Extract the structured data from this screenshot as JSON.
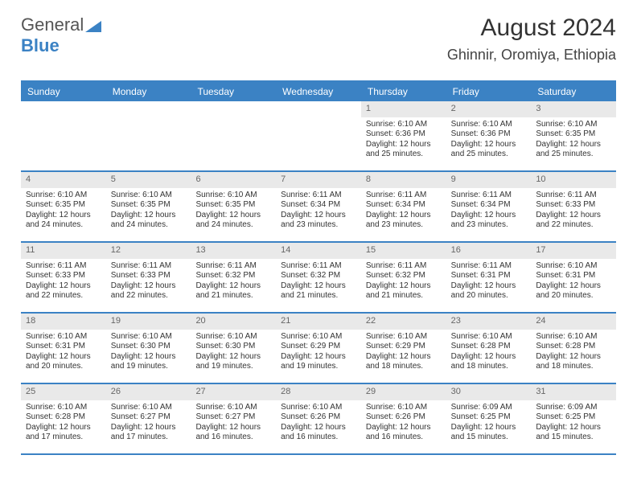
{
  "logo": {
    "text1": "General",
    "text2": "Blue"
  },
  "title": "August 2024",
  "location": "Ghinnir, Oromiya, Ethiopia",
  "colors": {
    "accent": "#3b82c4",
    "date_bg": "#e9e9e9",
    "text": "#333333",
    "muted": "#666666",
    "bg": "#ffffff",
    "header_text": "#ffffff"
  },
  "typography": {
    "title_fontsize": 30,
    "location_fontsize": 18,
    "dayhead_fontsize": 12,
    "cell_fontsize": 10,
    "date_fontsize": 11,
    "family": "Arial"
  },
  "day_headers": [
    "Sunday",
    "Monday",
    "Tuesday",
    "Wednesday",
    "Thursday",
    "Friday",
    "Saturday"
  ],
  "weeks": [
    [
      {
        "date": "",
        "sunrise": "",
        "sunset": "",
        "daylight": ""
      },
      {
        "date": "",
        "sunrise": "",
        "sunset": "",
        "daylight": ""
      },
      {
        "date": "",
        "sunrise": "",
        "sunset": "",
        "daylight": ""
      },
      {
        "date": "",
        "sunrise": "",
        "sunset": "",
        "daylight": ""
      },
      {
        "date": "1",
        "sunrise": "Sunrise: 6:10 AM",
        "sunset": "Sunset: 6:36 PM",
        "daylight": "Daylight: 12 hours and 25 minutes."
      },
      {
        "date": "2",
        "sunrise": "Sunrise: 6:10 AM",
        "sunset": "Sunset: 6:36 PM",
        "daylight": "Daylight: 12 hours and 25 minutes."
      },
      {
        "date": "3",
        "sunrise": "Sunrise: 6:10 AM",
        "sunset": "Sunset: 6:35 PM",
        "daylight": "Daylight: 12 hours and 25 minutes."
      }
    ],
    [
      {
        "date": "4",
        "sunrise": "Sunrise: 6:10 AM",
        "sunset": "Sunset: 6:35 PM",
        "daylight": "Daylight: 12 hours and 24 minutes."
      },
      {
        "date": "5",
        "sunrise": "Sunrise: 6:10 AM",
        "sunset": "Sunset: 6:35 PM",
        "daylight": "Daylight: 12 hours and 24 minutes."
      },
      {
        "date": "6",
        "sunrise": "Sunrise: 6:10 AM",
        "sunset": "Sunset: 6:35 PM",
        "daylight": "Daylight: 12 hours and 24 minutes."
      },
      {
        "date": "7",
        "sunrise": "Sunrise: 6:11 AM",
        "sunset": "Sunset: 6:34 PM",
        "daylight": "Daylight: 12 hours and 23 minutes."
      },
      {
        "date": "8",
        "sunrise": "Sunrise: 6:11 AM",
        "sunset": "Sunset: 6:34 PM",
        "daylight": "Daylight: 12 hours and 23 minutes."
      },
      {
        "date": "9",
        "sunrise": "Sunrise: 6:11 AM",
        "sunset": "Sunset: 6:34 PM",
        "daylight": "Daylight: 12 hours and 23 minutes."
      },
      {
        "date": "10",
        "sunrise": "Sunrise: 6:11 AM",
        "sunset": "Sunset: 6:33 PM",
        "daylight": "Daylight: 12 hours and 22 minutes."
      }
    ],
    [
      {
        "date": "11",
        "sunrise": "Sunrise: 6:11 AM",
        "sunset": "Sunset: 6:33 PM",
        "daylight": "Daylight: 12 hours and 22 minutes."
      },
      {
        "date": "12",
        "sunrise": "Sunrise: 6:11 AM",
        "sunset": "Sunset: 6:33 PM",
        "daylight": "Daylight: 12 hours and 22 minutes."
      },
      {
        "date": "13",
        "sunrise": "Sunrise: 6:11 AM",
        "sunset": "Sunset: 6:32 PM",
        "daylight": "Daylight: 12 hours and 21 minutes."
      },
      {
        "date": "14",
        "sunrise": "Sunrise: 6:11 AM",
        "sunset": "Sunset: 6:32 PM",
        "daylight": "Daylight: 12 hours and 21 minutes."
      },
      {
        "date": "15",
        "sunrise": "Sunrise: 6:11 AM",
        "sunset": "Sunset: 6:32 PM",
        "daylight": "Daylight: 12 hours and 21 minutes."
      },
      {
        "date": "16",
        "sunrise": "Sunrise: 6:11 AM",
        "sunset": "Sunset: 6:31 PM",
        "daylight": "Daylight: 12 hours and 20 minutes."
      },
      {
        "date": "17",
        "sunrise": "Sunrise: 6:10 AM",
        "sunset": "Sunset: 6:31 PM",
        "daylight": "Daylight: 12 hours and 20 minutes."
      }
    ],
    [
      {
        "date": "18",
        "sunrise": "Sunrise: 6:10 AM",
        "sunset": "Sunset: 6:31 PM",
        "daylight": "Daylight: 12 hours and 20 minutes."
      },
      {
        "date": "19",
        "sunrise": "Sunrise: 6:10 AM",
        "sunset": "Sunset: 6:30 PM",
        "daylight": "Daylight: 12 hours and 19 minutes."
      },
      {
        "date": "20",
        "sunrise": "Sunrise: 6:10 AM",
        "sunset": "Sunset: 6:30 PM",
        "daylight": "Daylight: 12 hours and 19 minutes."
      },
      {
        "date": "21",
        "sunrise": "Sunrise: 6:10 AM",
        "sunset": "Sunset: 6:29 PM",
        "daylight": "Daylight: 12 hours and 19 minutes."
      },
      {
        "date": "22",
        "sunrise": "Sunrise: 6:10 AM",
        "sunset": "Sunset: 6:29 PM",
        "daylight": "Daylight: 12 hours and 18 minutes."
      },
      {
        "date": "23",
        "sunrise": "Sunrise: 6:10 AM",
        "sunset": "Sunset: 6:28 PM",
        "daylight": "Daylight: 12 hours and 18 minutes."
      },
      {
        "date": "24",
        "sunrise": "Sunrise: 6:10 AM",
        "sunset": "Sunset: 6:28 PM",
        "daylight": "Daylight: 12 hours and 18 minutes."
      }
    ],
    [
      {
        "date": "25",
        "sunrise": "Sunrise: 6:10 AM",
        "sunset": "Sunset: 6:28 PM",
        "daylight": "Daylight: 12 hours and 17 minutes."
      },
      {
        "date": "26",
        "sunrise": "Sunrise: 6:10 AM",
        "sunset": "Sunset: 6:27 PM",
        "daylight": "Daylight: 12 hours and 17 minutes."
      },
      {
        "date": "27",
        "sunrise": "Sunrise: 6:10 AM",
        "sunset": "Sunset: 6:27 PM",
        "daylight": "Daylight: 12 hours and 16 minutes."
      },
      {
        "date": "28",
        "sunrise": "Sunrise: 6:10 AM",
        "sunset": "Sunset: 6:26 PM",
        "daylight": "Daylight: 12 hours and 16 minutes."
      },
      {
        "date": "29",
        "sunrise": "Sunrise: 6:10 AM",
        "sunset": "Sunset: 6:26 PM",
        "daylight": "Daylight: 12 hours and 16 minutes."
      },
      {
        "date": "30",
        "sunrise": "Sunrise: 6:09 AM",
        "sunset": "Sunset: 6:25 PM",
        "daylight": "Daylight: 12 hours and 15 minutes."
      },
      {
        "date": "31",
        "sunrise": "Sunrise: 6:09 AM",
        "sunset": "Sunset: 6:25 PM",
        "daylight": "Daylight: 12 hours and 15 minutes."
      }
    ]
  ]
}
